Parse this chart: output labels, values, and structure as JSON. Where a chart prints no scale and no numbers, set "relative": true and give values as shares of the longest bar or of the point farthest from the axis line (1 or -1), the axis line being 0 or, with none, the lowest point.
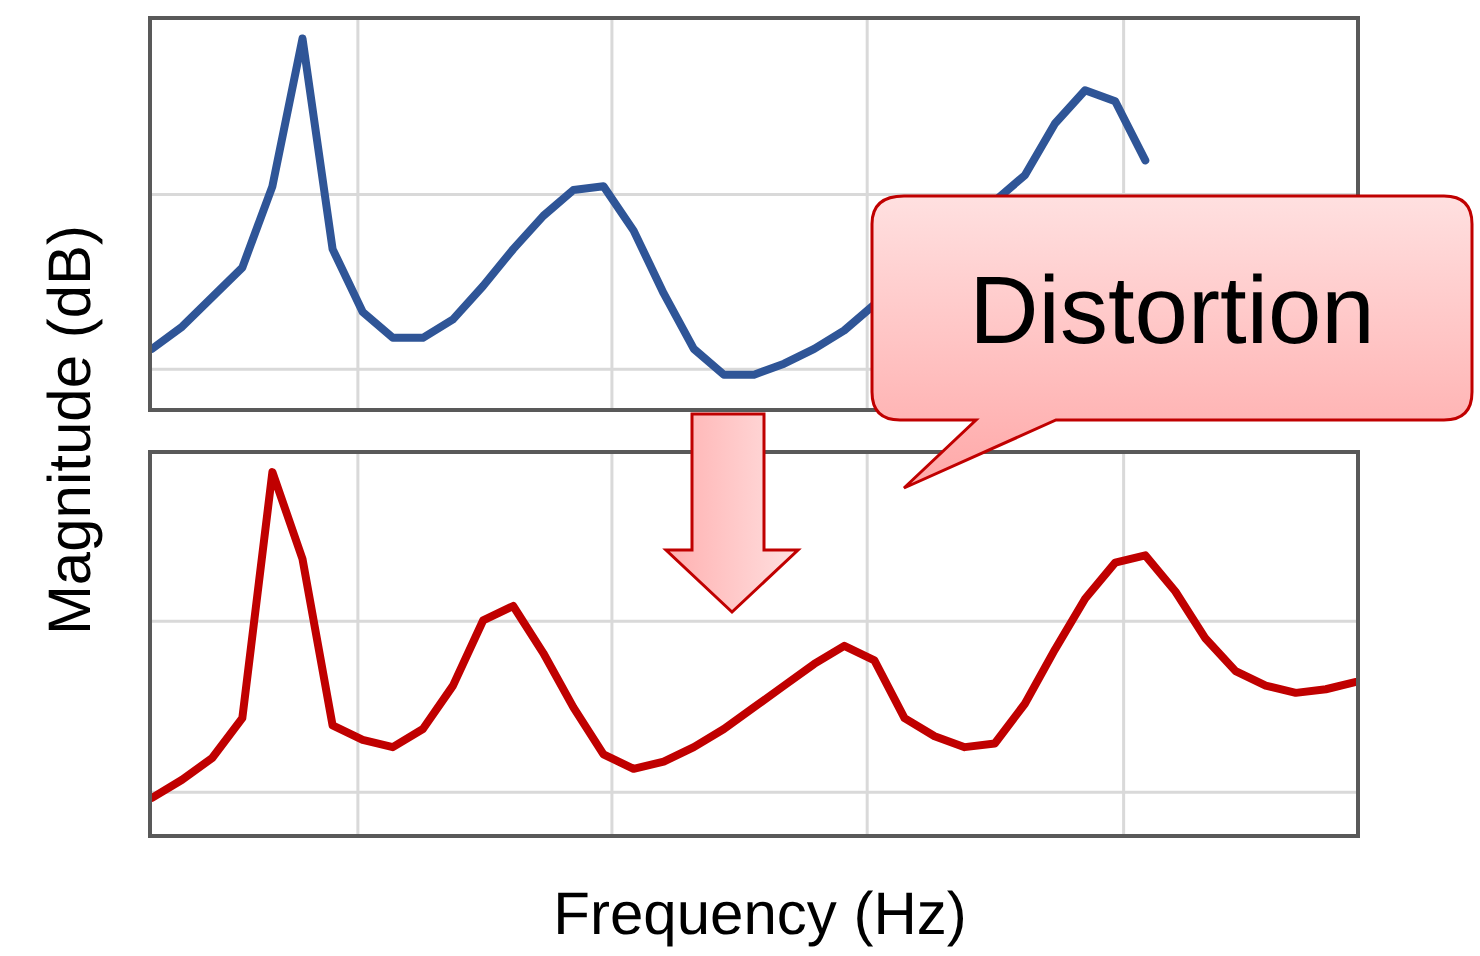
{
  "chart_data": [
    {
      "type": "line",
      "ylabel": "Magnitude (dB)",
      "relative": true,
      "grid": true,
      "annotations": [
        "Distortion"
      ],
      "categories": [
        null,
        null,
        null,
        null,
        null,
        null,
        null,
        null,
        null,
        null,
        null,
        null,
        null,
        null,
        null,
        null,
        null,
        null,
        null,
        null,
        null,
        null,
        null,
        null,
        null,
        null,
        null,
        null,
        null,
        null,
        null,
        null,
        null,
        null,
        null,
        null,
        null,
        null,
        null,
        null,
        null
      ],
      "series": [
        {
          "color": "#2f5597",
          "values": [
            0.16,
            0.22,
            0.3,
            0.38,
            0.6,
            1,
            0.43,
            0.26,
            0.19,
            0.19,
            0.24,
            0.33,
            0.43,
            0.52,
            0.59,
            0.6,
            0.48,
            0.31,
            0.16,
            0.09,
            0.09,
            0.12,
            0.16,
            0.21,
            null,
            null,
            null,
            null,
            null,
            0.63,
            0.77,
            0.86,
            0.83,
            0.67,
            null,
            null,
            null,
            null,
            null,
            null,
            null
          ]
        }
      ]
    },
    {
      "type": "line",
      "xlabel": "Frequency (Hz)",
      "relative": true,
      "grid": true,
      "categories": [
        null,
        null,
        null,
        null,
        null,
        null,
        null,
        null,
        null,
        null,
        null,
        null,
        null,
        null,
        null,
        null,
        null,
        null,
        null,
        null,
        null,
        null,
        null,
        null,
        null,
        null,
        null,
        null,
        null,
        null,
        null,
        null,
        null,
        null,
        null,
        null,
        null,
        null,
        null,
        null,
        null
      ],
      "series": [
        {
          "color": "#c00000",
          "values": [
            0.1,
            0.15,
            0.21,
            0.32,
            1,
            0.76,
            0.3,
            0.26,
            0.24,
            0.29,
            0.41,
            0.59,
            0.63,
            0.5,
            0.35,
            0.22,
            0.18,
            0.2,
            0.24,
            0.29,
            0.35,
            0.41,
            0.47,
            0.52,
            0.48,
            0.32,
            0.27,
            0.24,
            0.25,
            0.36,
            0.51,
            0.65,
            0.75,
            0.77,
            0.67,
            0.54,
            0.45,
            0.41,
            0.39,
            0.4,
            0.42
          ]
        }
      ]
    }
  ]
}
